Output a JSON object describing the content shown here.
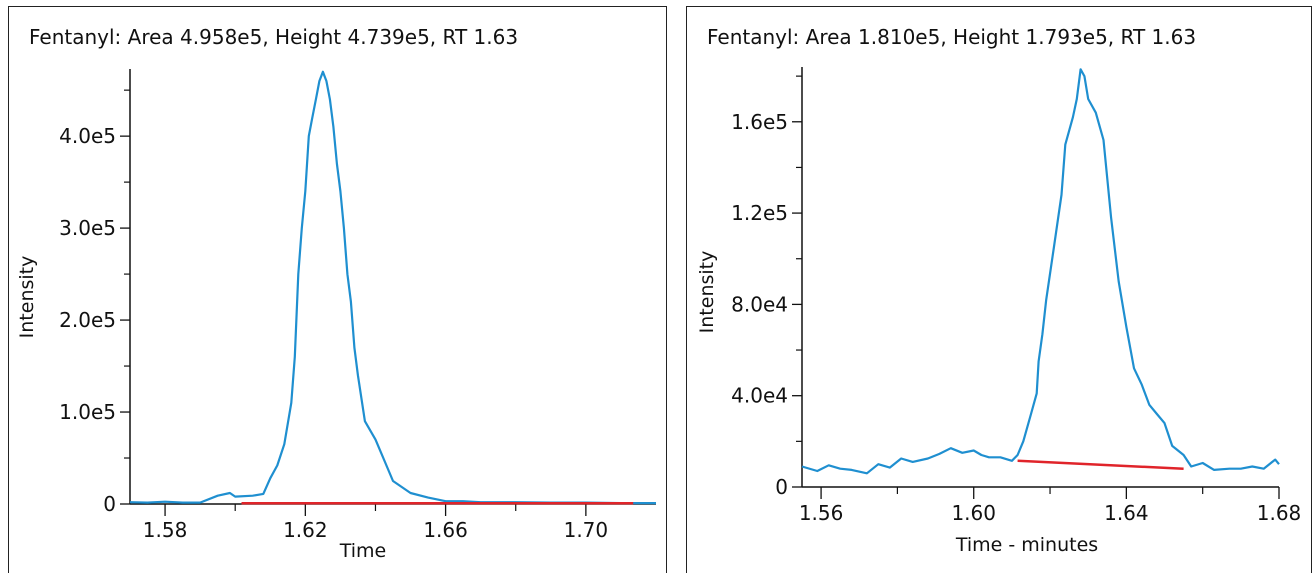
{
  "colors": {
    "trace": "#1f8fd0",
    "baseline": "#e0242a",
    "axis": "#111111"
  },
  "chart_data": [
    {
      "type": "line",
      "title": "Fentanyl: Area 4.958e5, Height 4.739e5, RT 1.63",
      "xlabel": "Time",
      "ylabel": "Intensity",
      "xlim": [
        1.57,
        1.72
      ],
      "ylim": [
        0,
        473000
      ],
      "x_ticks": [
        1.58,
        1.62,
        1.66,
        1.7
      ],
      "x_tick_labels": [
        "1.58",
        "1.62",
        "1.66",
        "1.70"
      ],
      "y_ticks": [
        0,
        100000,
        200000,
        300000,
        400000
      ],
      "y_tick_labels": [
        "0",
        "1.0e5",
        "2.0e5",
        "3.0e5",
        "4.0e5"
      ],
      "grid": false,
      "series": [
        {
          "role": "trace",
          "x": [
            1.57,
            1.575,
            1.58,
            1.585,
            1.59,
            1.595,
            1.5985,
            1.6,
            1.605,
            1.608,
            1.61,
            1.612,
            1.614,
            1.616,
            1.617,
            1.618,
            1.619,
            1.62,
            1.621,
            1.622,
            1.623,
            1.624,
            1.625,
            1.626,
            1.627,
            1.628,
            1.629,
            1.63,
            1.631,
            1.632,
            1.633,
            1.634,
            1.635,
            1.637,
            1.64,
            1.645,
            1.65,
            1.655,
            1.66,
            1.665,
            1.67,
            1.68,
            1.69,
            1.7,
            1.71,
            1.72
          ],
          "y": [
            2000,
            1500,
            2500,
            1500,
            1500,
            9000,
            12000,
            8000,
            9000,
            11000,
            28000,
            42000,
            65000,
            110000,
            160000,
            250000,
            300000,
            340000,
            400000,
            420000,
            440000,
            460000,
            470000,
            460000,
            440000,
            410000,
            370000,
            340000,
            300000,
            250000,
            220000,
            170000,
            140000,
            90000,
            70000,
            25000,
            12000,
            7000,
            3000,
            3000,
            2000,
            2000,
            1500,
            1500,
            1000,
            1000
          ]
        },
        {
          "role": "baseline",
          "x": [
            1.6018,
            1.7135
          ],
          "y": [
            800,
            800
          ]
        }
      ]
    },
    {
      "type": "line",
      "title": "Fentanyl: Area 1.810e5, Height 1.793e5, RT 1.63",
      "xlabel": "Time - minutes",
      "ylabel": "Intensity",
      "xlim": [
        1.555,
        1.68
      ],
      "ylim": [
        0,
        184000
      ],
      "x_ticks": [
        1.56,
        1.6,
        1.64,
        1.68
      ],
      "x_tick_labels": [
        "1.56",
        "1.60",
        "1.64",
        "1.68"
      ],
      "y_ticks": [
        0,
        40000,
        80000,
        120000,
        160000
      ],
      "y_tick_labels": [
        "0",
        "4.0e4",
        "8.0e4",
        "1.2e5",
        "1.6e5"
      ],
      "grid": false,
      "series": [
        {
          "role": "trace",
          "x": [
            1.555,
            1.559,
            1.562,
            1.565,
            1.568,
            1.572,
            1.575,
            1.578,
            1.581,
            1.584,
            1.588,
            1.591,
            1.594,
            1.597,
            1.6,
            1.602,
            1.604,
            1.607,
            1.61,
            1.6115,
            1.613,
            1.615,
            1.6165,
            1.617,
            1.618,
            1.619,
            1.621,
            1.623,
            1.624,
            1.626,
            1.627,
            1.628,
            1.629,
            1.63,
            1.632,
            1.634,
            1.636,
            1.638,
            1.64,
            1.642,
            1.644,
            1.646,
            1.648,
            1.65,
            1.652,
            1.655,
            1.657,
            1.66,
            1.663,
            1.667,
            1.67,
            1.673,
            1.676,
            1.679,
            1.68
          ],
          "y": [
            9000,
            7000,
            9500,
            8000,
            7500,
            6000,
            10000,
            8500,
            12500,
            11000,
            12500,
            14500,
            17000,
            15000,
            16000,
            14000,
            13000,
            13000,
            11500,
            14000,
            20000,
            32000,
            41000,
            55000,
            67000,
            82000,
            105000,
            128000,
            150000,
            162000,
            170000,
            183000,
            180000,
            170000,
            164000,
            152000,
            118000,
            90000,
            70000,
            52000,
            45000,
            36000,
            32000,
            28000,
            18000,
            14000,
            9000,
            10500,
            7500,
            8000,
            8000,
            9000,
            8000,
            12000,
            10000
          ]
        },
        {
          "role": "baseline",
          "x": [
            1.6115,
            1.655
          ],
          "y": [
            11500,
            8000
          ]
        }
      ]
    }
  ]
}
